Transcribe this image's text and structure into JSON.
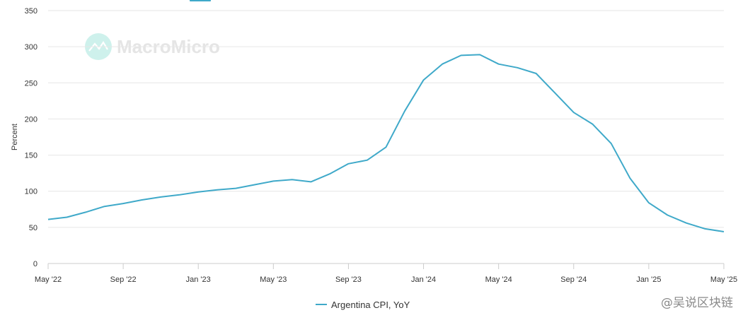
{
  "watermark": {
    "brand": "MacroMicro"
  },
  "source_watermark": {
    "text": "@吴说区块链"
  },
  "colors": {
    "line": "#3fa9c9",
    "grid": "#e6e6e6",
    "axis": "#cccccc",
    "watermark_icon": "#c9f0ea"
  },
  "chart_data": {
    "type": "line",
    "ylabel": "Percent",
    "xlabel": "",
    "title": "",
    "ylim": [
      0,
      350
    ],
    "yticks": [
      0,
      50,
      100,
      150,
      200,
      250,
      300,
      350
    ],
    "xlim": [
      "2022-05",
      "2025-05"
    ],
    "xticks": [
      {
        "date": "2022-05",
        "label": "May '22"
      },
      {
        "date": "2022-09",
        "label": "Sep '22"
      },
      {
        "date": "2023-01",
        "label": "Jan '23"
      },
      {
        "date": "2023-05",
        "label": "May '23"
      },
      {
        "date": "2023-09",
        "label": "Sep '23"
      },
      {
        "date": "2024-01",
        "label": "Jan '24"
      },
      {
        "date": "2024-05",
        "label": "May '24"
      },
      {
        "date": "2024-09",
        "label": "Sep '24"
      },
      {
        "date": "2025-01",
        "label": "Jan '25"
      },
      {
        "date": "2025-05",
        "label": "May '25"
      }
    ],
    "legend_position": "bottom-center",
    "series": [
      {
        "name": "Argentina CPI, YoY",
        "x": [
          "2022-05",
          "2022-06",
          "2022-07",
          "2022-08",
          "2022-09",
          "2022-10",
          "2022-11",
          "2022-12",
          "2023-01",
          "2023-02",
          "2023-03",
          "2023-04",
          "2023-05",
          "2023-06",
          "2023-07",
          "2023-08",
          "2023-09",
          "2023-10",
          "2023-11",
          "2023-12",
          "2024-01",
          "2024-02",
          "2024-03",
          "2024-04",
          "2024-05",
          "2024-06",
          "2024-07",
          "2024-08",
          "2024-09",
          "2024-10",
          "2024-11",
          "2024-12",
          "2025-01",
          "2025-02",
          "2025-03",
          "2025-04",
          "2025-05"
        ],
        "values": [
          61,
          64,
          71,
          79,
          83,
          88,
          92,
          95,
          99,
          102,
          104,
          109,
          114,
          116,
          113,
          124,
          138,
          143,
          161,
          211,
          254,
          276,
          288,
          289,
          276,
          271,
          263,
          236,
          209,
          193,
          166,
          118,
          84,
          67,
          56,
          48,
          44
        ]
      }
    ]
  }
}
